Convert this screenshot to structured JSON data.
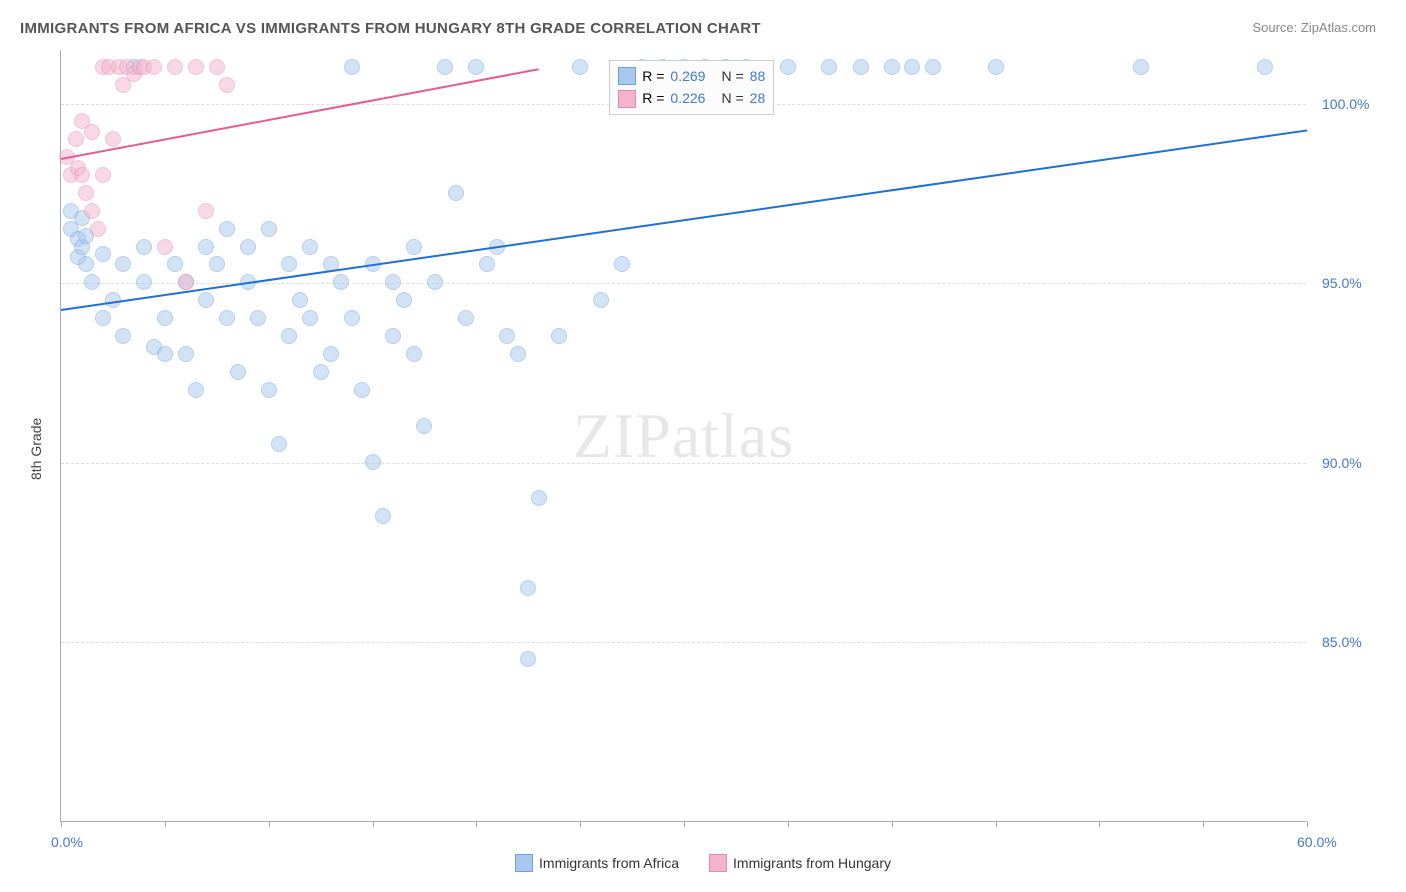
{
  "title": "IMMIGRANTS FROM AFRICA VS IMMIGRANTS FROM HUNGARY 8TH GRADE CORRELATION CHART",
  "source": "Source: ZipAtlas.com",
  "y_axis_title": "8th Grade",
  "watermark": "ZIPatlas",
  "chart": {
    "type": "scatter",
    "xlim": [
      0,
      60
    ],
    "ylim": [
      80,
      101.5
    ],
    "y_ticks": [
      85.0,
      90.0,
      95.0,
      100.0
    ],
    "y_tick_labels": [
      "85.0%",
      "90.0%",
      "95.0%",
      "100.0%"
    ],
    "x_ticks": [
      0,
      5,
      10,
      15,
      20,
      25,
      30,
      35,
      40,
      45,
      50,
      55,
      60
    ],
    "x_labels_shown": {
      "0": "0.0%",
      "60": "60.0%"
    },
    "grid_color": "#dddddd",
    "background_color": "#ffffff",
    "marker_radius": 8,
    "marker_opacity": 0.5,
    "series": [
      {
        "name": "Immigrants from Africa",
        "color": "#4b89dc",
        "fill": "#a8c8ee",
        "stroke": "#6fa0d8",
        "r_value": "0.269",
        "n_value": "88",
        "trend": {
          "x1": 0,
          "y1": 94.3,
          "x2": 60,
          "y2": 99.3,
          "color": "#1f6fd4",
          "width": 2
        },
        "points": [
          [
            0.5,
            96.5
          ],
          [
            0.5,
            97.0
          ],
          [
            0.8,
            96.2
          ],
          [
            0.8,
            95.7
          ],
          [
            1.0,
            96.0
          ],
          [
            1.0,
            96.8
          ],
          [
            1.2,
            95.5
          ],
          [
            1.2,
            96.3
          ],
          [
            1.5,
            95.0
          ],
          [
            2.0,
            95.8
          ],
          [
            2.0,
            94.0
          ],
          [
            2.5,
            94.5
          ],
          [
            3.0,
            95.5
          ],
          [
            3.0,
            93.5
          ],
          [
            3.5,
            101.0
          ],
          [
            4.0,
            95.0
          ],
          [
            4.0,
            96.0
          ],
          [
            4.5,
            93.2
          ],
          [
            5.0,
            94.0
          ],
          [
            5.0,
            93.0
          ],
          [
            5.5,
            95.5
          ],
          [
            6.0,
            93.0
          ],
          [
            6.0,
            95.0
          ],
          [
            6.5,
            92.0
          ],
          [
            7.0,
            96.0
          ],
          [
            7.0,
            94.5
          ],
          [
            7.5,
            95.5
          ],
          [
            8.0,
            96.5
          ],
          [
            8.0,
            94.0
          ],
          [
            8.5,
            92.5
          ],
          [
            9.0,
            96.0
          ],
          [
            9.0,
            95.0
          ],
          [
            9.5,
            94.0
          ],
          [
            10.0,
            96.5
          ],
          [
            10.0,
            92.0
          ],
          [
            10.5,
            90.5
          ],
          [
            11.0,
            95.5
          ],
          [
            11.0,
            93.5
          ],
          [
            11.5,
            94.5
          ],
          [
            12.0,
            96.0
          ],
          [
            12.0,
            94.0
          ],
          [
            12.5,
            92.5
          ],
          [
            13.0,
            95.5
          ],
          [
            13.0,
            93.0
          ],
          [
            13.5,
            95.0
          ],
          [
            14.0,
            101.0
          ],
          [
            14.0,
            94.0
          ],
          [
            14.5,
            92.0
          ],
          [
            15.0,
            95.5
          ],
          [
            15.0,
            90.0
          ],
          [
            15.5,
            88.5
          ],
          [
            16.0,
            93.5
          ],
          [
            16.0,
            95.0
          ],
          [
            16.5,
            94.5
          ],
          [
            17.0,
            96.0
          ],
          [
            17.0,
            93.0
          ],
          [
            17.5,
            91.0
          ],
          [
            18.0,
            95.0
          ],
          [
            18.5,
            101.0
          ],
          [
            19.0,
            97.5
          ],
          [
            19.5,
            94.0
          ],
          [
            20.0,
            101.0
          ],
          [
            20.5,
            95.5
          ],
          [
            21.0,
            96.0
          ],
          [
            21.5,
            93.5
          ],
          [
            22.0,
            93.0
          ],
          [
            22.5,
            84.5
          ],
          [
            22.5,
            86.5
          ],
          [
            23.0,
            89.0
          ],
          [
            24.0,
            93.5
          ],
          [
            25.0,
            101.0
          ],
          [
            26.0,
            94.5
          ],
          [
            27.0,
            95.5
          ],
          [
            28.0,
            101.0
          ],
          [
            29.0,
            101.0
          ],
          [
            30.0,
            101.0
          ],
          [
            31.0,
            101.0
          ],
          [
            32.0,
            101.0
          ],
          [
            33.0,
            101.0
          ],
          [
            35.0,
            101.0
          ],
          [
            37.0,
            101.0
          ],
          [
            38.5,
            101.0
          ],
          [
            40.0,
            101.0
          ],
          [
            41.0,
            101.0
          ],
          [
            42.0,
            101.0
          ],
          [
            45.0,
            101.0
          ],
          [
            52.0,
            101.0
          ],
          [
            58.0,
            101.0
          ]
        ]
      },
      {
        "name": "Immigrants from Hungary",
        "color": "#e87ba5",
        "fill": "#f3b3cb",
        "stroke": "#e28bad",
        "r_value": "0.226",
        "n_value": "28",
        "trend": {
          "x1": 0,
          "y1": 98.5,
          "x2": 23,
          "y2": 101.0,
          "color": "#e85a96",
          "width": 2
        },
        "points": [
          [
            0.3,
            98.5
          ],
          [
            0.5,
            98.0
          ],
          [
            0.7,
            99.0
          ],
          [
            0.8,
            98.2
          ],
          [
            1.0,
            99.5
          ],
          [
            1.0,
            98.0
          ],
          [
            1.2,
            97.5
          ],
          [
            1.5,
            97.0
          ],
          [
            1.5,
            99.2
          ],
          [
            1.8,
            96.5
          ],
          [
            2.0,
            101.0
          ],
          [
            2.0,
            98.0
          ],
          [
            2.3,
            101.0
          ],
          [
            2.5,
            99.0
          ],
          [
            2.8,
            101.0
          ],
          [
            3.0,
            100.5
          ],
          [
            3.2,
            101.0
          ],
          [
            3.5,
            100.8
          ],
          [
            3.8,
            101.0
          ],
          [
            4.0,
            101.0
          ],
          [
            4.5,
            101.0
          ],
          [
            5.0,
            96.0
          ],
          [
            5.5,
            101.0
          ],
          [
            6.0,
            95.0
          ],
          [
            6.5,
            101.0
          ],
          [
            7.0,
            97.0
          ],
          [
            7.5,
            101.0
          ],
          [
            8.0,
            100.5
          ]
        ]
      }
    ]
  },
  "stat_box": {
    "rows": [
      {
        "swatch_fill": "#a8c8ee",
        "swatch_border": "#6fa0d8",
        "r": "0.269",
        "n": "88"
      },
      {
        "swatch_fill": "#f3b3cb",
        "swatch_border": "#e28bad",
        "r": "0.226",
        "n": "28"
      }
    ],
    "r_label": "R =",
    "n_label": "N ="
  },
  "bottom_legend": [
    {
      "fill": "#a8c8ee",
      "border": "#6fa0d8",
      "label": "Immigrants from Africa"
    },
    {
      "fill": "#f3b3cb",
      "border": "#e28bad",
      "label": "Immigrants from Hungary"
    }
  ]
}
